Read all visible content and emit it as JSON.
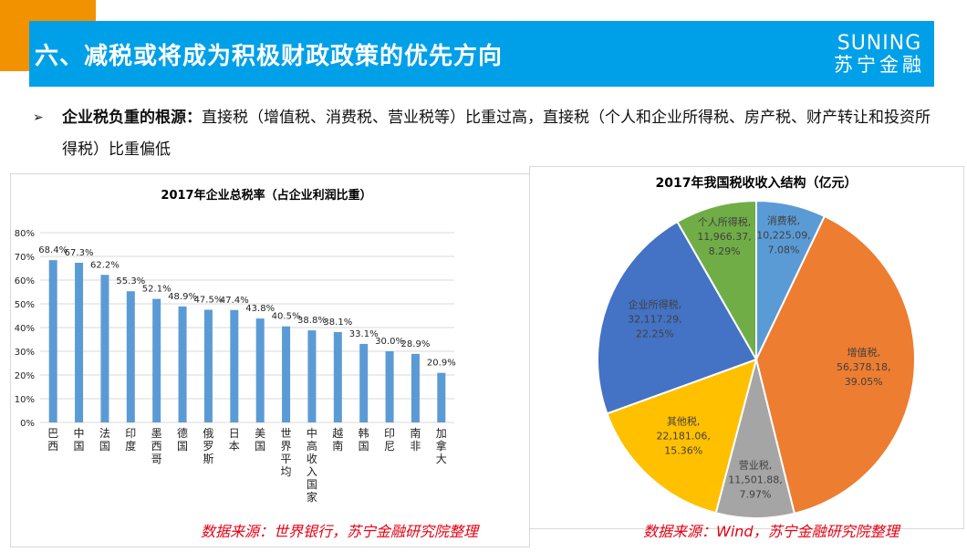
{
  "header": {
    "title": "六、减税或将成为积极财政政策的优先方向",
    "logo_en": "SUNING",
    "logo_cn": "苏宁金融"
  },
  "bullet": {
    "bold": "企业税负重的根源：",
    "text": "直接税（增值税、消费税、营业税等）比重过高，直接税（个人和企业所得税、房产税、财产转让和投资所得税）比重偏低"
  },
  "colors": {
    "band": "#00a0e9",
    "accent": "#f39200",
    "bar": "#5b9bd5",
    "source": "#e60012"
  },
  "chart_data": [
    {
      "type": "bar",
      "title": "2017年企业总税率（占企业利润比重）",
      "categories": [
        "巴西",
        "中国",
        "法国",
        "印度",
        "墨西哥",
        "德国",
        "俄罗斯",
        "日本",
        "美国",
        "世界平均",
        "中高收入国家",
        "越南",
        "韩国",
        "印尼",
        "南非",
        "加拿大"
      ],
      "values": [
        68.4,
        67.3,
        62.2,
        55.3,
        52.1,
        48.9,
        47.5,
        47.4,
        43.8,
        40.5,
        38.8,
        38.1,
        33.1,
        30.0,
        28.9,
        20.9
      ],
      "data_labels": [
        "68.4%",
        "67.3%",
        "62.2%",
        "55.3%",
        "52.1%",
        "48.9%",
        "47.5%",
        "47.4%",
        "43.8%",
        "40.5%",
        "38.8%",
        "38.1%",
        "33.1%",
        "30.0%",
        "28.9%",
        "20.9%"
      ],
      "yticks": [
        "0%",
        "10%",
        "20%",
        "30%",
        "40%",
        "50%",
        "60%",
        "70%",
        "80%"
      ],
      "ylim": [
        0,
        80
      ],
      "grid": true,
      "source": "数据来源：世界银行，苏宁金融研究院整理"
    },
    {
      "type": "pie",
      "title": "2017年我国税收收入结构（亿元）",
      "slices": [
        {
          "name": "消费税",
          "value": 10225.09,
          "value_label": "10,225.09",
          "pct": "7.08%",
          "color": "#5b9bd5"
        },
        {
          "name": "增值税",
          "value": 56378.18,
          "value_label": "56,378.18",
          "pct": "39.05%",
          "color": "#ed7d31"
        },
        {
          "name": "营业税",
          "value": 11501.88,
          "value_label": "11,501.88",
          "pct": "7.97%",
          "color": "#a5a5a5"
        },
        {
          "name": "其他税",
          "value": 22181.06,
          "value_label": "22,181.06",
          "pct": "15.36%",
          "color": "#ffc000"
        },
        {
          "name": "企业所得税",
          "value": 32117.29,
          "value_label": "32,117.29",
          "pct": "22.25%",
          "color": "#4472c4"
        },
        {
          "name": "个人所得税",
          "value": 11966.37,
          "value_label": "11,966.37",
          "pct": "8.29%",
          "color": "#70ad47"
        }
      ],
      "source": "数据来源：Wind，苏宁金融研究院整理"
    }
  ]
}
